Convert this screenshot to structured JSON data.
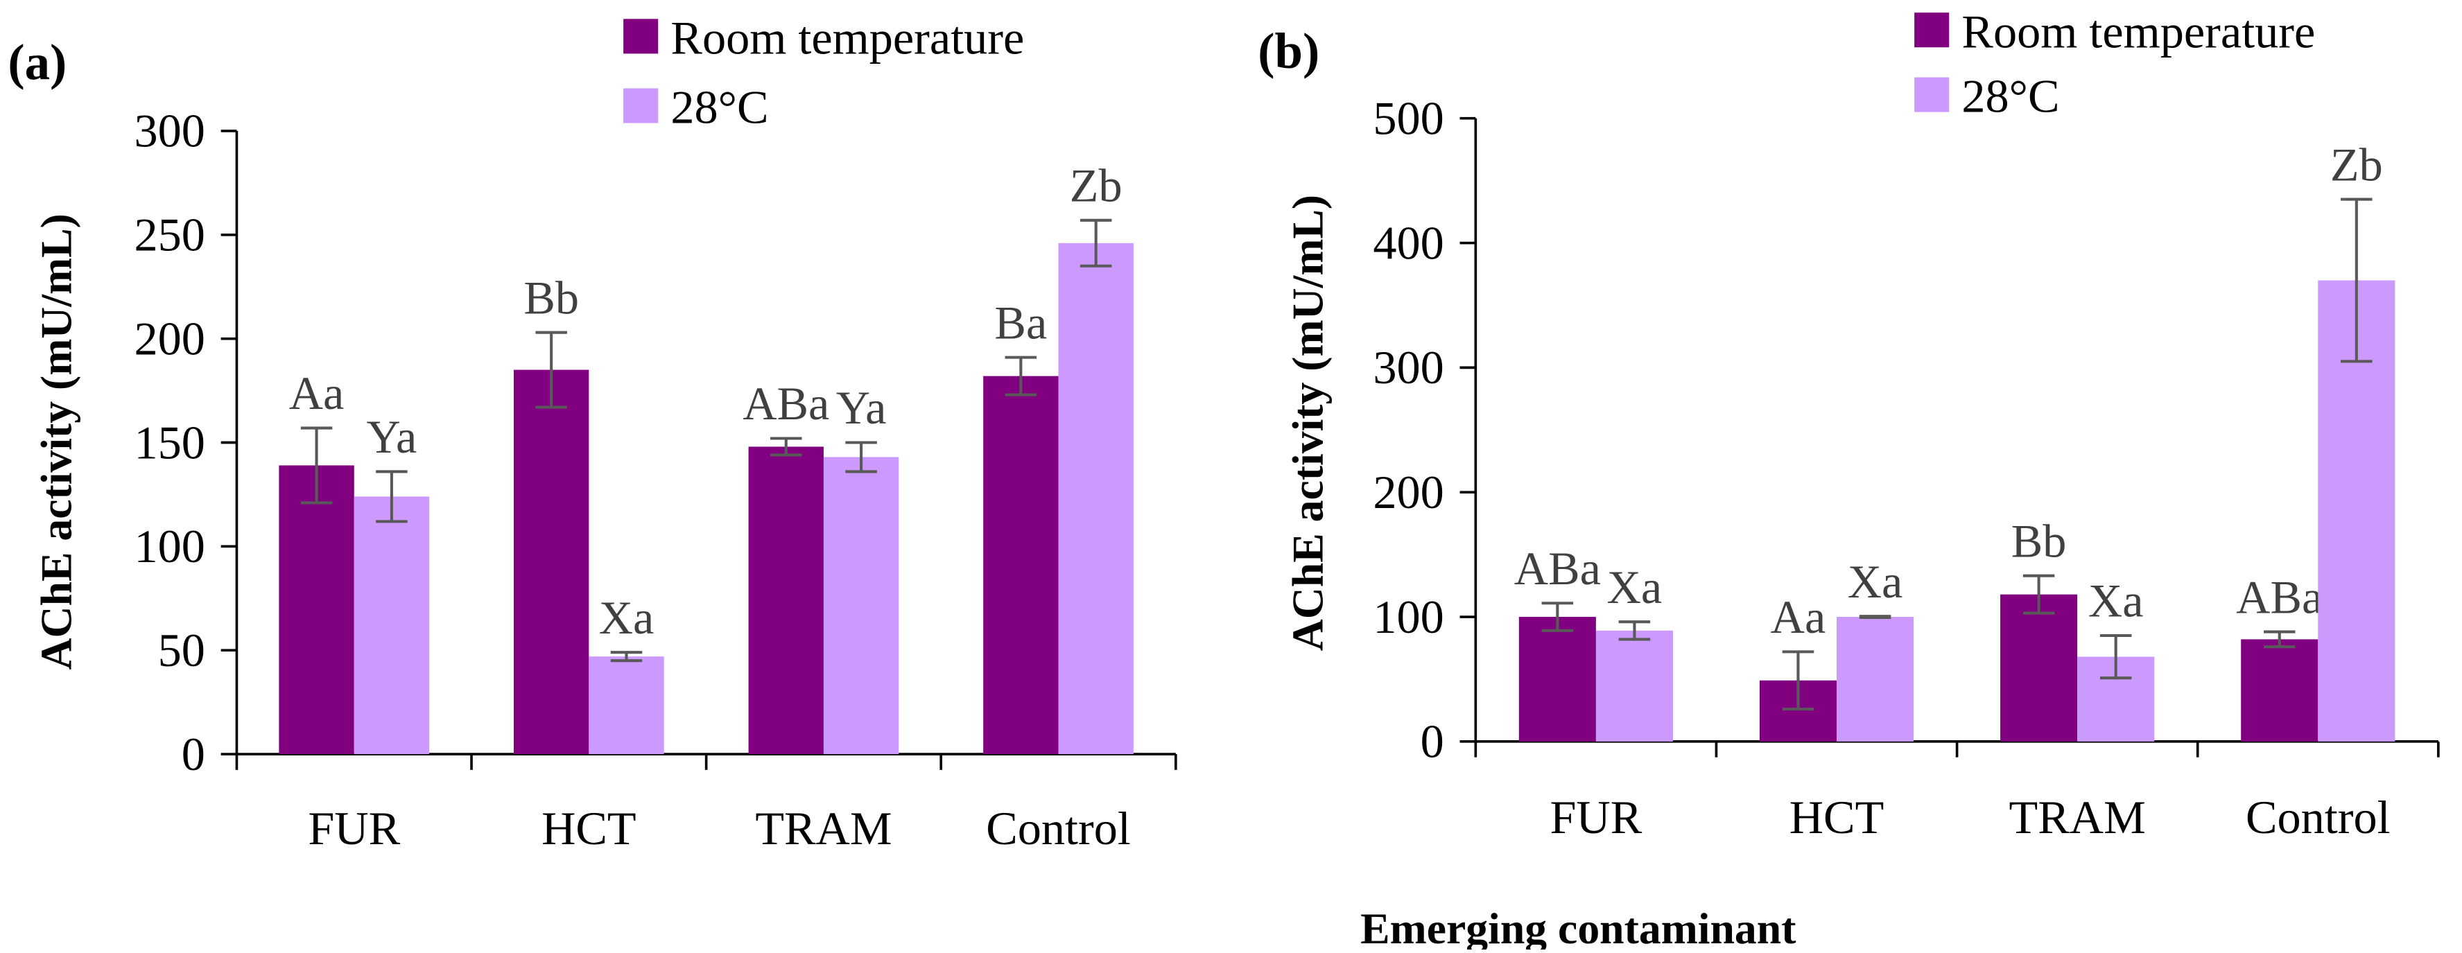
{
  "colors": {
    "room": "#800080",
    "c28": "#cc99ff",
    "axis": "#000000",
    "errorbar": "#595959",
    "label": "#404040"
  },
  "chart_data": [
    {
      "type": "bar",
      "panel_label": "(a)",
      "categories": [
        "FUR",
        "HCT",
        "TRAM",
        "Control"
      ],
      "series": [
        {
          "name": "Room temperature",
          "values": [
            139,
            185,
            148,
            182
          ],
          "errors": [
            18,
            18,
            4,
            9
          ],
          "letters": [
            "Aa",
            "Bb",
            "ABa",
            "Ba"
          ]
        },
        {
          "name": "28°C",
          "values": [
            124,
            47,
            143,
            246
          ],
          "errors": [
            12,
            2,
            7,
            11
          ],
          "letters": [
            "Ya",
            "Xa",
            "Ya",
            "Zb"
          ]
        }
      ],
      "xlabel": "Emerging contaminant",
      "ylabel": "AChE activity (mU/mL)",
      "ylim": [
        0,
        300
      ],
      "yticks": [
        "0",
        "50",
        "100",
        "150",
        "200",
        "250",
        "300"
      ],
      "legend_position": "top-right"
    },
    {
      "type": "bar",
      "panel_label": "(b)",
      "categories": [
        "FUR",
        "HCT",
        "TRAM",
        "Control"
      ],
      "series": [
        {
          "name": "Room temperature",
          "values": [
            100,
            49,
            118,
            82
          ],
          "errors": [
            11,
            23,
            15,
            6
          ],
          "letters": [
            "ABa",
            "Aa",
            "Bb",
            "ABa"
          ]
        },
        {
          "name": "28°C",
          "values": [
            89,
            100,
            68,
            370
          ],
          "errors": [
            7,
            0.5,
            17,
            65
          ],
          "letters": [
            "Xa",
            "Xa",
            "Xa",
            "Zb"
          ]
        }
      ],
      "xlabel": "Emerging contaminant",
      "ylabel": "AChE activity (mU/mL)",
      "ylim": [
        0,
        500
      ],
      "yticks": [
        "0",
        "100",
        "200",
        "300",
        "400",
        "500"
      ],
      "legend_position": "top-right"
    }
  ]
}
